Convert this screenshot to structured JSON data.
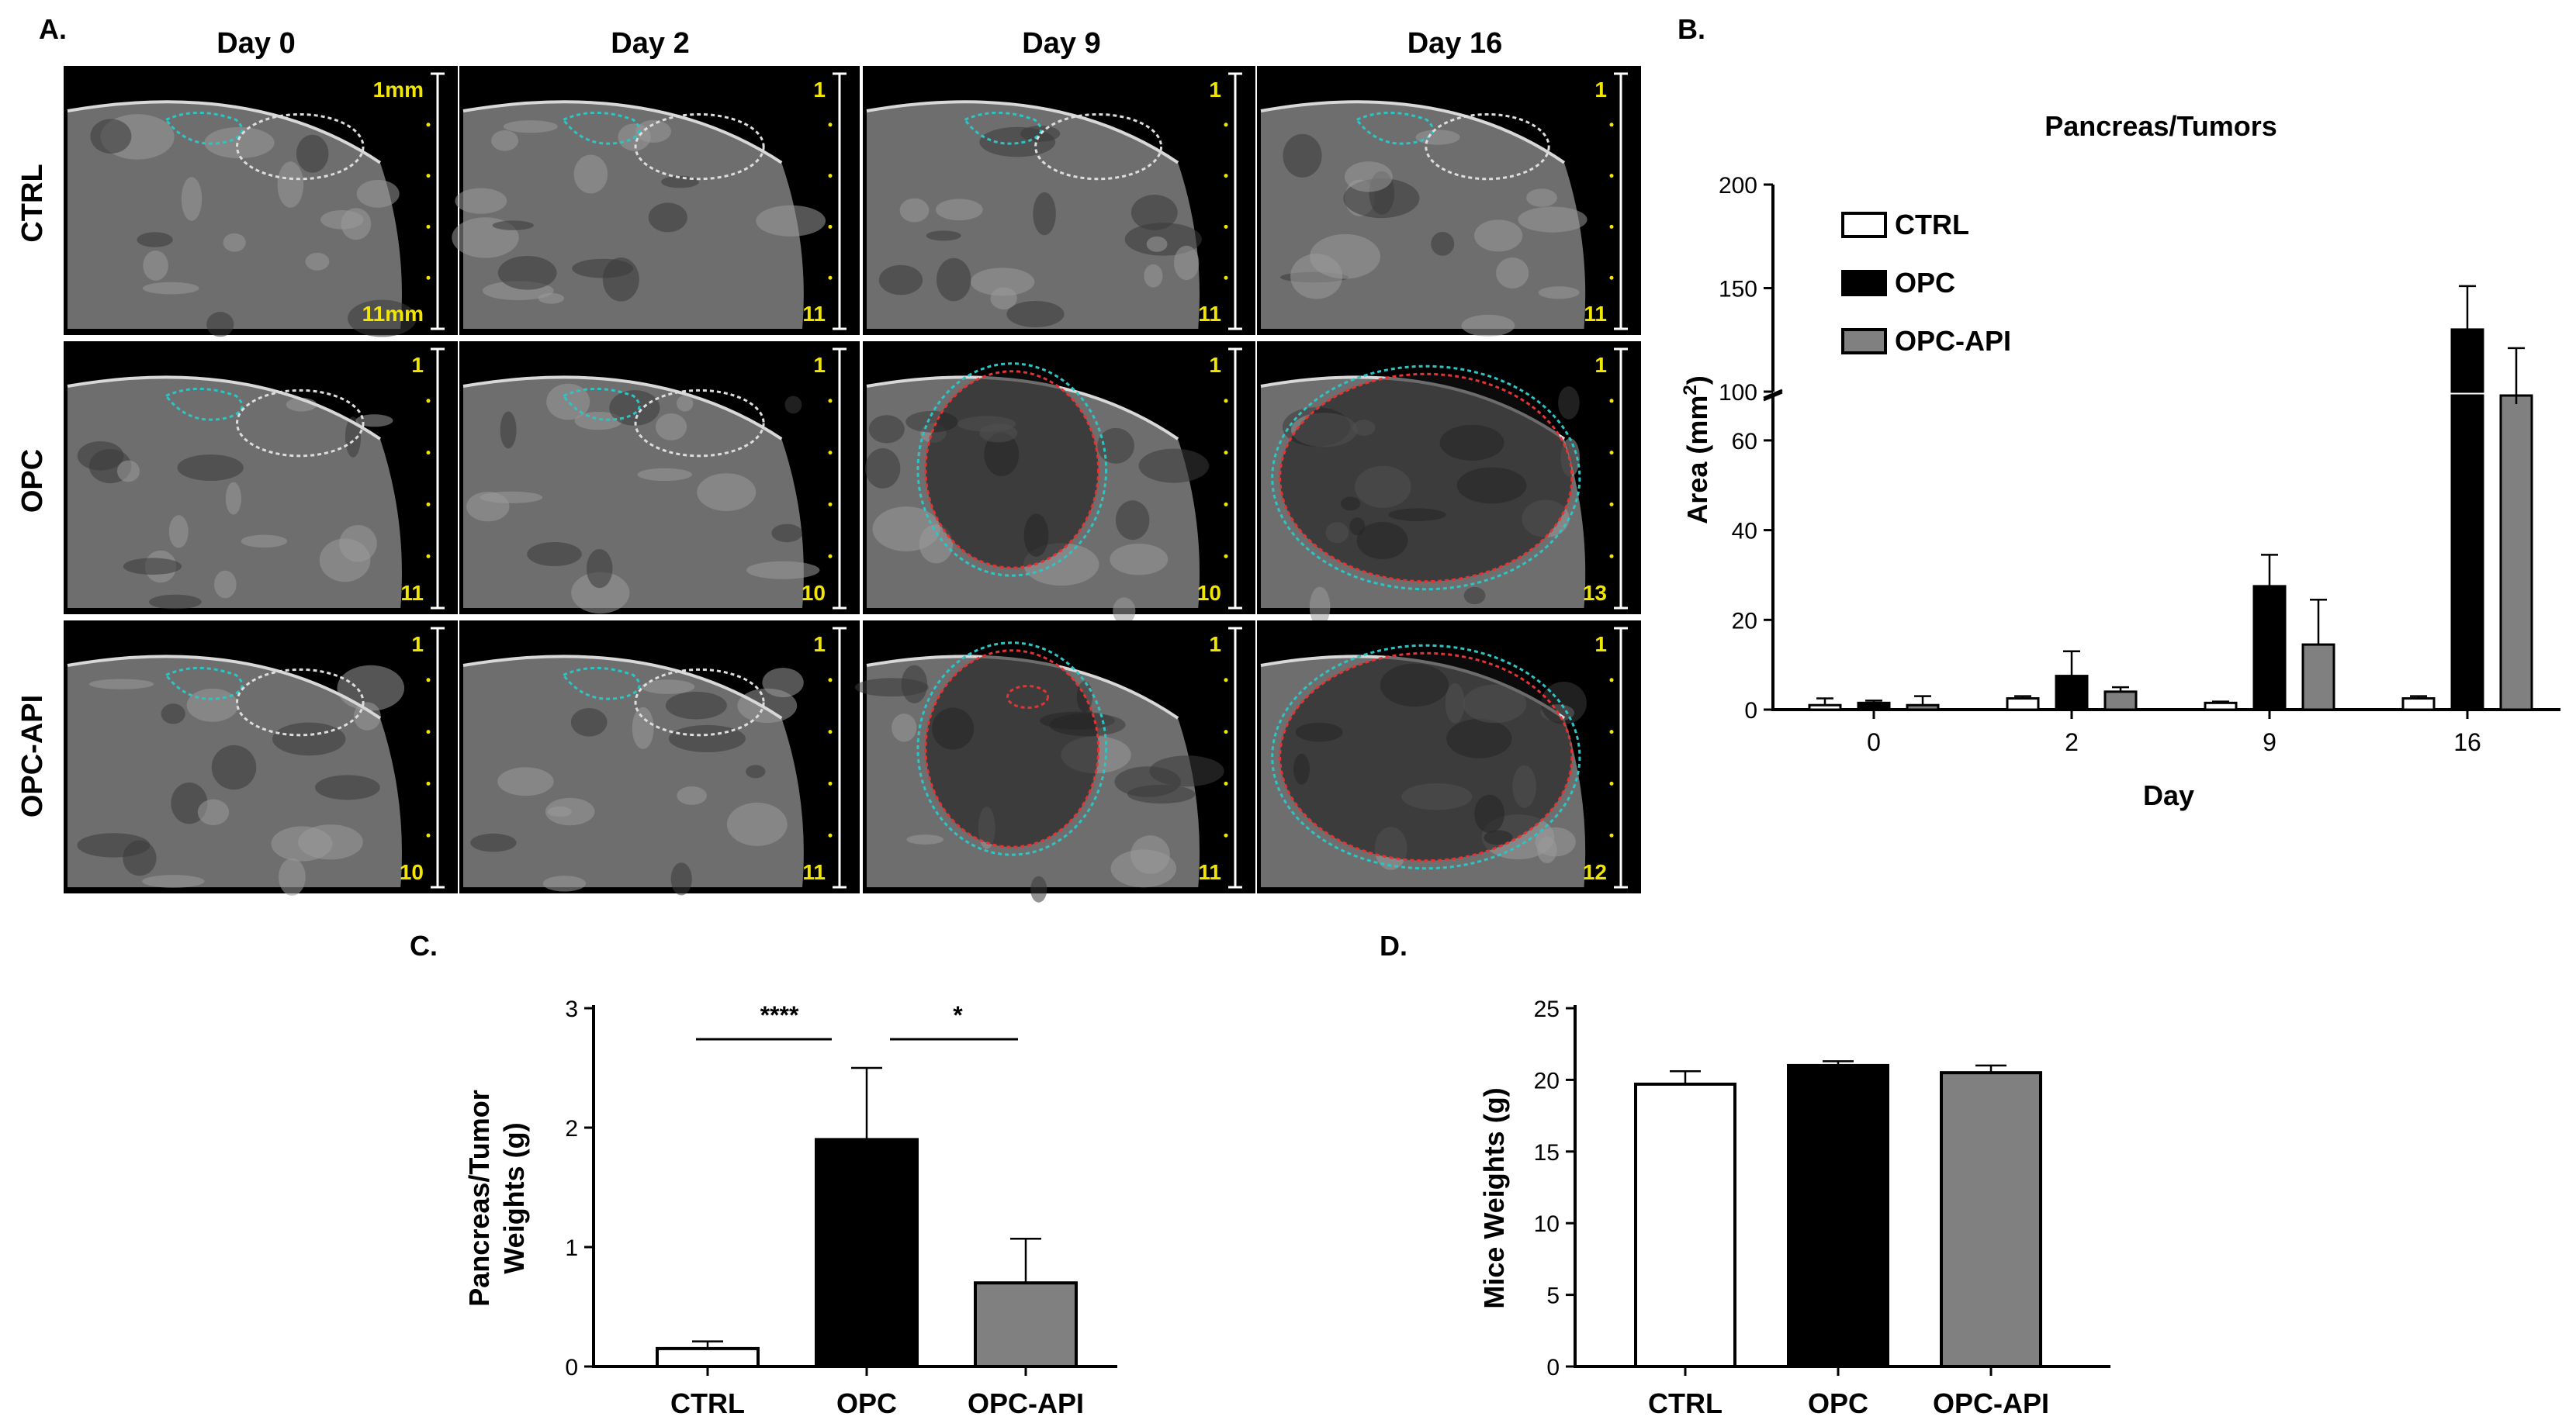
{
  "panel_labels": {
    "a": "A.",
    "b": "B.",
    "c": "C.",
    "d": "D."
  },
  "ultrasound": {
    "days": [
      "Day 0",
      "Day 2",
      "Day 9",
      "Day 16"
    ],
    "groups": [
      "CTRL",
      "OPC",
      "OPC-API"
    ],
    "depth_labels": [
      [
        [
          "1mm",
          "11mm"
        ],
        [
          "1",
          "11"
        ],
        [
          "1",
          "11"
        ],
        [
          "1",
          "11"
        ]
      ],
      [
        [
          "1",
          "11"
        ],
        [
          "1",
          "10"
        ],
        [
          "1",
          "10"
        ],
        [
          "1",
          "13"
        ]
      ],
      [
        [
          "1",
          "10"
        ],
        [
          "1",
          "11"
        ],
        [
          "1",
          "11"
        ],
        [
          "1",
          "12"
        ]
      ]
    ],
    "colors": {
      "background": "#000000",
      "pancreas_outline": "#2ec4c4",
      "tumor_outline": "#e53333",
      "region_outline": "#dddddd",
      "depth_text": "#f2e600"
    }
  },
  "chart_data": [
    {
      "panel": "B.",
      "type": "bar",
      "title": "Pancreas/Tumors",
      "xlabel": "Day",
      "ylabel": "Area (mm",
      "ylabel_superscript": "2",
      "ylabel_close": ")",
      "categories": [
        "0",
        "2",
        "9",
        "16"
      ],
      "axis_break": {
        "lower": [
          0,
          70
        ],
        "upper": [
          100,
          200
        ],
        "lower_ticks": [
          "0",
          "20",
          "40",
          "60"
        ],
        "upper_ticks": [
          "100",
          "150",
          "200"
        ]
      },
      "legend_position": "top-left",
      "series": [
        {
          "name": "CTRL",
          "color": "#ffffff",
          "values": [
            1.0,
            2.5,
            1.5,
            2.5
          ],
          "errors": [
            1.5,
            0.5,
            0.3,
            0.5
          ]
        },
        {
          "name": "OPC",
          "color": "#000000",
          "values": [
            1.5,
            7.5,
            27.5,
            130
          ],
          "errors": [
            0.5,
            5.5,
            7,
            21
          ]
        },
        {
          "name": "OPC-API",
          "color": "#808080",
          "values": [
            1.0,
            4.0,
            14.5,
            94
          ],
          "errors": [
            2.0,
            1.0,
            10,
            27
          ]
        }
      ]
    },
    {
      "panel": "C.",
      "type": "bar",
      "ylabel_line1": "Pancreas/Tumor",
      "ylabel_line2": "Weights (g)",
      "categories": [
        "CTRL",
        "OPC",
        "OPC-API"
      ],
      "ylim": [
        0,
        3
      ],
      "yticks": [
        "0",
        "1",
        "2",
        "3"
      ],
      "values": [
        0.15,
        1.9,
        0.7
      ],
      "errors": [
        0.06,
        0.6,
        0.37
      ],
      "colors": [
        "#ffffff",
        "#000000",
        "#808080"
      ],
      "significance": [
        {
          "from": "CTRL",
          "to": "OPC",
          "label": "****"
        },
        {
          "from": "OPC",
          "to": "OPC-API",
          "label": "*"
        }
      ]
    },
    {
      "panel": "D.",
      "type": "bar",
      "ylabel": "Mice Weights (g)",
      "categories": [
        "CTRL",
        "OPC",
        "OPC-API"
      ],
      "ylim": [
        0,
        25
      ],
      "yticks": [
        "0",
        "5",
        "10",
        "15",
        "20",
        "25"
      ],
      "values": [
        19.7,
        21.0,
        20.5
      ],
      "errors": [
        0.9,
        0.3,
        0.5
      ],
      "colors": [
        "#ffffff",
        "#000000",
        "#808080"
      ]
    }
  ]
}
